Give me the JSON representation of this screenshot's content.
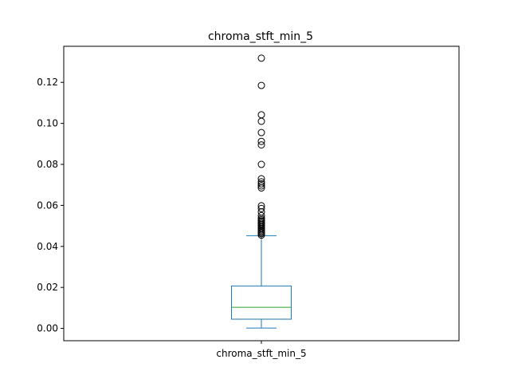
{
  "chart_data": {
    "type": "box",
    "title": "chroma_stft_min_5",
    "categories": [
      "chroma_stft_min_5"
    ],
    "xlabel": "",
    "ylabel": "",
    "ylim": [
      -0.006,
      0.1376
    ],
    "yticks": [
      0.0,
      0.02,
      0.04,
      0.06,
      0.08,
      0.1,
      0.12
    ],
    "ytick_labels": [
      "0.00",
      "0.02",
      "0.04",
      "0.06",
      "0.08",
      "0.10",
      "0.12"
    ],
    "grid": false,
    "box": {
      "whisker_low": 0.0002,
      "q1": 0.0045,
      "median": 0.0103,
      "q3": 0.0207,
      "whisker_high": 0.0452
    },
    "outliers": [
      0.0455,
      0.0462,
      0.0468,
      0.0474,
      0.048,
      0.0487,
      0.0493,
      0.05,
      0.0506,
      0.0512,
      0.0518,
      0.0524,
      0.053,
      0.0537,
      0.055,
      0.0568,
      0.0585,
      0.0598,
      0.0685,
      0.0695,
      0.0705,
      0.0715,
      0.073,
      0.08,
      0.0895,
      0.0912,
      0.0955,
      0.101,
      0.1042,
      0.1185,
      0.1318
    ],
    "colors": {
      "box": "#1f77b4",
      "median": "#2ca02c",
      "outlier_edge": "#000000"
    }
  }
}
